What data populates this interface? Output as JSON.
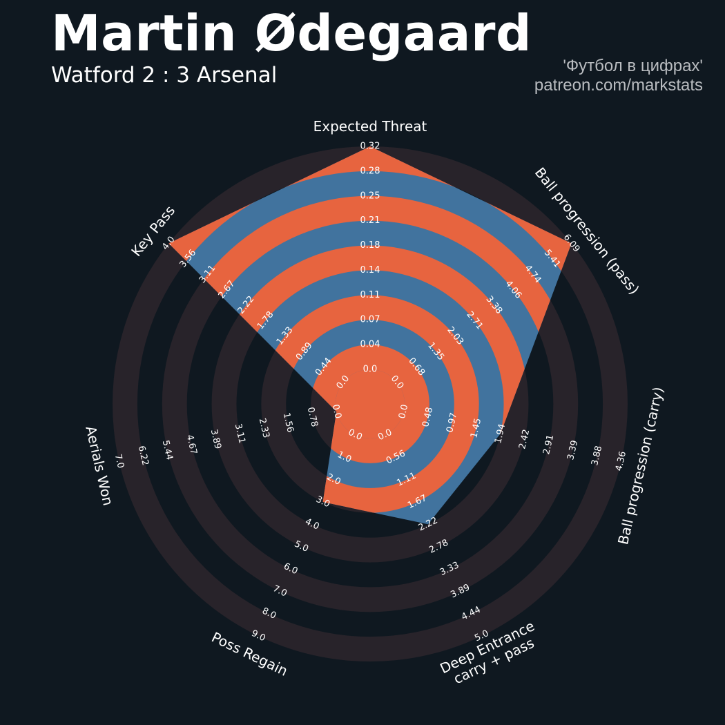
{
  "header": {
    "title": "Martin Ødegaard",
    "subtitle": "Watford 2 : 3 Arsenal",
    "credit_line1": "'Футбол в цифрах'",
    "credit_line2": "patreon.com/markstats"
  },
  "colors": {
    "background": "#0f1820",
    "ring_bg_band": "#28232a",
    "ring_bg_gap": "#0f1820",
    "fill_blue": "#41739e",
    "fill_orange": "#e7643f",
    "text": "#ffffff",
    "credit_text": "#b9bcc0"
  },
  "chart_data": {
    "type": "radar",
    "title": "Martin Ødegaard",
    "subtitle": "Watford 2 : 3 Arsenal",
    "axes": [
      {
        "label": [
          "Expected Threat"
        ],
        "min": 0.0,
        "max": 0.32,
        "ticks": [
          "0.0",
          "0.04",
          "0.07",
          "0.11",
          "0.14",
          "0.18",
          "0.21",
          "0.25",
          "0.28",
          "0.32"
        ],
        "value": 0.32
      },
      {
        "label": [
          "Ball progression (pass)"
        ],
        "min": 0.0,
        "max": 6.09,
        "ticks": [
          "0.0",
          "0.68",
          "1.35",
          "2.03",
          "2.71",
          "3.38",
          "4.06",
          "4.74",
          "5.41",
          "6.09"
        ],
        "value": 6.09
      },
      {
        "label": [
          "Ball progression (carry)"
        ],
        "min": 0.0,
        "max": 4.36,
        "ticks": [
          "0.0",
          "0.48",
          "0.97",
          "1.45",
          "1.94",
          "2.42",
          "2.91",
          "3.39",
          "3.88",
          "4.36"
        ],
        "value": 1.94
      },
      {
        "label": [
          "Deep Entrance",
          "carry + pass"
        ],
        "min": 0.0,
        "max": 5.0,
        "ticks": [
          "0.0",
          "0.56",
          "1.11",
          "1.67",
          "2.22",
          "2.78",
          "3.33",
          "3.89",
          "4.44",
          "5.0"
        ],
        "value": 2.22
      },
      {
        "label": [
          "Poss Regain"
        ],
        "min": 0.0,
        "max": 9.0,
        "ticks": [
          "0.0",
          "1.0",
          "2.0",
          "3.0",
          "4.0",
          "5.0",
          "6.0",
          "7.0",
          "8.0",
          "9.0"
        ],
        "value": 3.0
      },
      {
        "label": [
          "Aerials Won"
        ],
        "min": 0.0,
        "max": 7.0,
        "ticks": [
          "0.0",
          "0.78",
          "1.56",
          "2.33",
          "3.11",
          "3.89",
          "4.67",
          "5.44",
          "6.22",
          "7.0"
        ],
        "value": 0.0
      },
      {
        "label": [
          "Key Pass"
        ],
        "min": 0.0,
        "max": 4.0,
        "ticks": [
          "0.0",
          "0.44",
          "0.89",
          "1.33",
          "1.78",
          "2.22",
          "2.67",
          "3.11",
          "3.56",
          "4.0"
        ],
        "value": 4.0
      }
    ]
  }
}
